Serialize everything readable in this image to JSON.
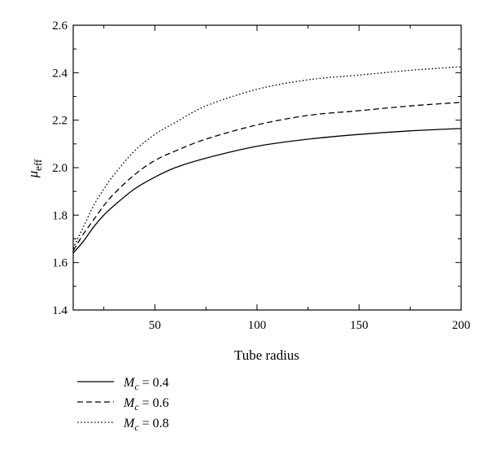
{
  "chart_data": {
    "type": "line",
    "title": "",
    "xlabel": "Tube radius",
    "ylabel_symbol": "μ",
    "ylabel_subscript": "eff",
    "xlim": [
      10,
      200
    ],
    "ylim": [
      1.4,
      2.6
    ],
    "xticks": [
      50,
      100,
      150,
      200
    ],
    "yticks": [
      1.4,
      1.6,
      1.8,
      2.0,
      2.2,
      2.4,
      2.6
    ],
    "xtick_labels": [
      "50",
      "100",
      "150",
      "200"
    ],
    "ytick_labels": [
      "1.4",
      "1.6",
      "1.8",
      "2.0",
      "2.2",
      "2.4",
      "2.6"
    ],
    "grid": false,
    "legend_placement": "bottom-left, below plot",
    "series": [
      {
        "legend_symbol": "M",
        "legend_subscript": "c",
        "legend_value": " = 0.4",
        "line_style": "solid",
        "x": [
          10,
          15,
          20,
          25,
          30,
          40,
          50,
          60,
          75,
          100,
          125,
          150,
          175,
          200
        ],
        "y": [
          1.64,
          1.69,
          1.75,
          1.8,
          1.84,
          1.91,
          1.96,
          2.0,
          2.04,
          2.09,
          2.12,
          2.14,
          2.155,
          2.165
        ]
      },
      {
        "legend_symbol": "M",
        "legend_subscript": "c",
        "legend_value": " = 0.6",
        "line_style": "dashed",
        "x": [
          10,
          15,
          20,
          25,
          30,
          40,
          50,
          60,
          75,
          100,
          125,
          150,
          175,
          200
        ],
        "y": [
          1.65,
          1.72,
          1.78,
          1.84,
          1.89,
          1.97,
          2.03,
          2.07,
          2.12,
          2.18,
          2.22,
          2.24,
          2.26,
          2.275
        ]
      },
      {
        "legend_symbol": "M",
        "legend_subscript": "c",
        "legend_value": " = 0.8",
        "line_style": "dotted",
        "x": [
          10,
          15,
          20,
          25,
          30,
          40,
          50,
          60,
          75,
          100,
          125,
          150,
          175,
          200
        ],
        "y": [
          1.66,
          1.75,
          1.84,
          1.91,
          1.97,
          2.07,
          2.14,
          2.19,
          2.26,
          2.33,
          2.37,
          2.39,
          2.41,
          2.425
        ]
      }
    ]
  }
}
